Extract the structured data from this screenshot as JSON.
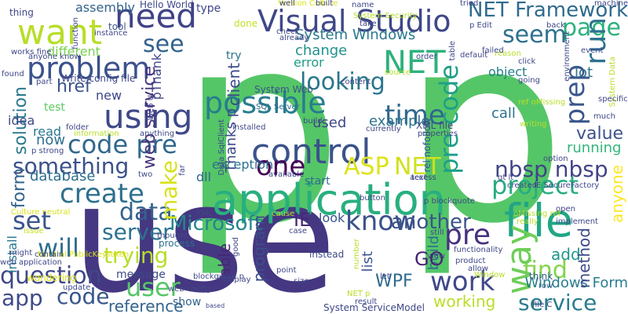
{
  "words": [
    {
      "text": "p",
      "color": "#55c667",
      "vertical": false
    },
    {
      "text": "p",
      "color": "#55c667",
      "vertical": false
    },
    {
      "text": "use",
      "color": "#453781",
      "vertical": false
    },
    {
      "text": "application",
      "color": "#29af7f",
      "vertical": false
    },
    {
      "text": "control",
      "color": "#3b528b",
      "vertical": false
    },
    {
      "text": "file",
      "color": "#21a685",
      "vertical": false
    },
    {
      "text": "need",
      "color": "#404387",
      "vertical": false
    },
    {
      "text": "Visual Studio",
      "color": "#3f4788",
      "vertical": false
    },
    {
      "text": "want",
      "color": "#b8de29",
      "vertical": false
    },
    {
      "text": "NET",
      "color": "#2db27d",
      "vertical": false
    },
    {
      "text": "problem",
      "color": "#3b528b",
      "vertical": false
    },
    {
      "text": "using",
      "color": "#3e4989",
      "vertical": false
    },
    {
      "text": "possible",
      "color": "#287d8e",
      "vertical": false
    },
    {
      "text": "code pre",
      "color": "#31688e",
      "vertical": false
    },
    {
      "text": "create",
      "color": "#2d708e",
      "vertical": false
    },
    {
      "text": "something",
      "color": "#3b528b",
      "vertical": false
    },
    {
      "text": "one",
      "color": "#440154",
      "vertical": false
    },
    {
      "text": "ASP",
      "color": "#dde318",
      "vertical": false
    },
    {
      "text": "NET",
      "color": "#d0e11c",
      "vertical": false
    },
    {
      "text": "project",
      "color": "#26ad81",
      "vertical": false
    },
    {
      "text": "know",
      "color": "#3b528b",
      "vertical": false
    },
    {
      "text": "data",
      "color": "#33638d",
      "vertical": false
    },
    {
      "text": "set",
      "color": "#3a548c",
      "vertical": false
    },
    {
      "text": "server",
      "color": "#2c728e",
      "vertical": false
    },
    {
      "text": "trying",
      "color": "#b5de2b",
      "vertical": false
    },
    {
      "text": "will",
      "color": "#2e6e8e",
      "vertical": false
    },
    {
      "text": "question",
      "color": "#3f4788",
      "vertical": false
    },
    {
      "text": "user",
      "color": "#56c667",
      "vertical": false
    },
    {
      "text": "app",
      "color": "#3e4a89",
      "vertical": false
    },
    {
      "text": "code",
      "color": "#39568c",
      "vertical": false
    },
    {
      "text": "work",
      "color": "#3f4889",
      "vertical": false
    },
    {
      "text": "find",
      "color": "#84d44b",
      "vertical": false
    },
    {
      "text": "service",
      "color": "#287c8e",
      "vertical": false
    },
    {
      "text": "time",
      "color": "#31678e",
      "vertical": false
    },
    {
      "text": "looking",
      "color": "#2a768e",
      "vertical": false
    },
    {
      "text": "page",
      "color": "#2db27d",
      "vertical": false
    },
    {
      "text": "seem",
      "color": "#2d718e",
      "vertical": false
    },
    {
      "text": "see",
      "color": "#33628d",
      "vertical": false
    },
    {
      "text": "NET Framework",
      "color": "#2f6b8e",
      "vertical": false
    },
    {
      "text": "nbsp nbsp",
      "color": "#414487",
      "vertical": false
    },
    {
      "text": "Microsoft",
      "color": "#25858e",
      "vertical": false
    },
    {
      "text": "IE",
      "color": "#482878",
      "vertical": false
    },
    {
      "text": "another",
      "color": "#3b528b",
      "vertical": false
    },
    {
      "text": "pre",
      "color": "#46327e",
      "vertical": false
    },
    {
      "text": "make",
      "color": "#d8e219",
      "vertical": true
    },
    {
      "text": "pre code",
      "color": "#1f9f88",
      "vertical": true
    },
    {
      "text": "way",
      "color": "#6ece58",
      "vertical": true
    },
    {
      "text": "prep",
      "color": "#39568c",
      "vertical": true
    },
    {
      "text": "run",
      "color": "#2c728e",
      "vertical": true
    },
    {
      "text": "solution",
      "color": "#2a788e",
      "vertical": true
    },
    {
      "text": "form",
      "color": "#33638d",
      "vertical": true
    },
    {
      "text": "web service",
      "color": "#46327e",
      "vertical": true
    },
    {
      "text": "client",
      "color": "#3e4a89",
      "vertical": true
    },
    {
      "text": "href",
      "color": "#3b528b",
      "vertical": false
    },
    {
      "text": "System Windows",
      "color": "#2a788e",
      "vertical": false
    },
    {
      "text": "change",
      "color": "#20928c",
      "vertical": false
    },
    {
      "text": "error",
      "color": "#1f9e89",
      "vertical": false
    },
    {
      "text": "object",
      "color": "#277f8e",
      "vertical": false
    },
    {
      "text": "call",
      "color": "#2c718e",
      "vertical": false
    },
    {
      "text": "value",
      "color": "#3b528b",
      "vertical": false
    },
    {
      "text": "running",
      "color": "#32b67a",
      "vertical": false
    },
    {
      "text": "lot",
      "color": "#2c728e",
      "vertical": false
    },
    {
      "text": "example",
      "color": "#2c738e",
      "vertical": false
    },
    {
      "text": "used",
      "color": "#3f4788",
      "vertical": false
    },
    {
      "text": "database",
      "color": "#2e6f8e",
      "vertical": false
    },
    {
      "text": "exception",
      "color": "#2c728e",
      "vertical": false
    },
    {
      "text": "dll",
      "color": "#31668e",
      "vertical": false
    },
    {
      "text": "start",
      "color": "#2f6c8e",
      "vertical": false
    },
    {
      "text": "look",
      "color": "#3b528b",
      "vertical": false
    },
    {
      "text": "add",
      "color": "#1f988b",
      "vertical": false
    },
    {
      "text": "Windows Form",
      "color": "#277e8e",
      "vertical": false
    },
    {
      "text": "working",
      "color": "#bade28",
      "vertical": false
    },
    {
      "text": "reference",
      "color": "#33638d",
      "vertical": false
    },
    {
      "text": "message",
      "color": "#3e4a89",
      "vertical": false
    },
    {
      "text": "program",
      "color": "#3d4e8a",
      "vertical": true
    },
    {
      "text": "able",
      "color": "#482677",
      "vertical": true
    },
    {
      "text": "list",
      "color": "#3a548c",
      "vertical": true
    },
    {
      "text": "build",
      "color": "#2e6e8e",
      "vertical": true
    },
    {
      "text": "method",
      "color": "#3e4989",
      "vertical": true
    },
    {
      "text": "anyone",
      "color": "#fde725",
      "vertical": true
    },
    {
      "text": "GO",
      "color": "#482475",
      "vertical": false
    },
    {
      "text": "WPF",
      "color": "#2f6b8e",
      "vertical": false
    },
    {
      "text": "idea",
      "color": "#3f4788",
      "vertical": false
    },
    {
      "text": "read",
      "color": "#2a788e",
      "vertical": false
    },
    {
      "text": "now",
      "color": "#2d718e",
      "vertical": false
    },
    {
      "text": "test",
      "color": "#5ec962",
      "vertical": false
    },
    {
      "text": "tool",
      "color": "#3b528b",
      "vertical": false
    },
    {
      "text": "try",
      "color": "#2d708e",
      "vertical": false
    },
    {
      "text": "done",
      "color": "#c2df23",
      "vertical": false
    },
    {
      "text": "type",
      "color": "#3f4788",
      "vertical": false
    },
    {
      "text": "thing",
      "color": "#3f4788",
      "vertical": false
    },
    {
      "text": "assembly",
      "color": "#33638d",
      "vertical": false
    },
    {
      "text": "different",
      "color": "#7ad151",
      "vertical": false
    },
    {
      "text": "Hello World",
      "color": "#3f4788",
      "vertical": false
    },
    {
      "text": "Write config file",
      "color": "#3f4788",
      "vertical": false
    },
    {
      "text": "System Web",
      "color": "#3b528b",
      "vertical": false
    },
    {
      "text": "SQL Server",
      "color": "#2f6c8e",
      "vertical": false
    },
    {
      "text": "install",
      "color": "#2a788e",
      "vertical": true
    },
    {
      "text": "Culture neutral",
      "color": "#d8e219",
      "vertical": false
    },
    {
      "text": "System ServiceModel",
      "color": "#3f4788",
      "vertical": false
    },
    {
      "text": "process",
      "color": "#2d708e",
      "vertical": false
    },
    {
      "text": "show",
      "color": "#33638d",
      "vertical": false
    },
    {
      "text": "think",
      "color": "#33638d",
      "vertical": false
    },
    {
      "text": "row",
      "color": "#33638d",
      "vertical": false
    },
    {
      "text": "instead",
      "color": "#3f4788",
      "vertical": false
    },
    {
      "text": "Thanks p",
      "color": "#3e4989",
      "vertical": true
    },
    {
      "text": "pThank",
      "color": "#3f4788",
      "vertical": true
    },
    {
      "text": "new",
      "color": "#3f4788",
      "vertical": false
    },
    {
      "text": "rel nofollow",
      "color": "#39568c",
      "vertical": true
    },
    {
      "text": "gt lt",
      "color": "#3f4788",
      "vertical": false
    },
    {
      "text": "web application",
      "color": "#3f4788",
      "vertical": false
    },
    {
      "text": "wondering",
      "color": "#dde318",
      "vertical": false
    },
    {
      "text": "issue",
      "color": "#cae11f",
      "vertical": false
    },
    {
      "text": "Version Culture",
      "color": "#dde318",
      "vertical": false
    },
    {
      "text": "works fine",
      "color": "#3f4788",
      "vertical": false
    },
    {
      "text": "anyone know",
      "color": "#3f4788",
      "vertical": false
    },
    {
      "text": "machine",
      "color": "#3f4788",
      "vertical": false
    },
    {
      "text": "IE SecureFactory",
      "color": "#3f4788",
      "vertical": false
    },
    {
      "text": "XML file",
      "color": "#3f4788",
      "vertical": false
    },
    {
      "text": "good",
      "color": "#3f4788",
      "vertical": true
    },
    {
      "text": "far",
      "color": "#3f4788",
      "vertical": true
    },
    {
      "text": "build",
      "color": "#3f4788",
      "vertical": false
    },
    {
      "text": "check",
      "color": "#3f4788",
      "vertical": false
    },
    {
      "text": "already",
      "color": "#3f4788",
      "vertical": false
    },
    {
      "text": "source",
      "color": "#b8de29",
      "vertical": false
    },
    {
      "text": "content",
      "color": "#3f4788",
      "vertical": false
    },
    {
      "text": "reason",
      "color": "#b8de29",
      "vertical": false
    },
    {
      "text": "currently",
      "color": "#3f4788",
      "vertical": false
    },
    {
      "text": "properties",
      "color": "#3f4788",
      "vertical": false
    },
    {
      "text": "access",
      "color": "#3f4788",
      "vertical": false
    },
    {
      "text": "button",
      "color": "#3f4788",
      "vertical": false
    },
    {
      "text": "p blockquote",
      "color": "#3f4788",
      "vertical": false
    },
    {
      "text": "open",
      "color": "#3f4788",
      "vertical": false
    },
    {
      "text": "implement",
      "color": "#3f4788",
      "vertical": false
    },
    {
      "text": "view",
      "color": "#3f4788",
      "vertical": false
    },
    {
      "text": "functionality",
      "color": "#3f4788",
      "vertical": false
    },
    {
      "text": "product",
      "color": "#3f4788",
      "vertical": false
    },
    {
      "text": "allow",
      "color": "#3f4788",
      "vertical": false
    },
    {
      "text": "blockquote p",
      "color": "#3f4788",
      "vertical": false
    },
    {
      "text": "point",
      "color": "#3f4788",
      "vertical": false
    },
    {
      "text": "size",
      "color": "#3f4788",
      "vertical": false
    },
    {
      "text": "let",
      "color": "#3f4788",
      "vertical": false
    },
    {
      "text": "result",
      "color": "#3f4788",
      "vertical": false
    },
    {
      "text": "file C",
      "color": "#3f4788",
      "vertical": false
    },
    {
      "text": "display",
      "color": "#3f4788",
      "vertical": false
    },
    {
      "text": "thought",
      "color": "#3f4788",
      "vertical": false
    },
    {
      "text": "web config",
      "color": "#3f4788",
      "vertical": false
    },
    {
      "text": "based",
      "color": "#3f4788",
      "vertical": false
    },
    {
      "text": "Neutral PublicKeyToken",
      "color": "#dde318",
      "vertical": false
    },
    {
      "text": "contain",
      "color": "#3f4788",
      "vertical": false
    },
    {
      "text": "might",
      "color": "#3f4788",
      "vertical": false
    },
    {
      "text": "update",
      "color": "#3f4788",
      "vertical": false
    },
    {
      "text": "p strong",
      "color": "#3f4788",
      "vertical": false
    },
    {
      "text": "information",
      "color": "#b8de29",
      "vertical": false
    },
    {
      "text": "anything",
      "color": "#3f4788",
      "vertical": false
    },
    {
      "text": "folder",
      "color": "#3f4788",
      "vertical": false
    },
    {
      "text": "part",
      "color": "#3f4788",
      "vertical": false
    },
    {
      "text": "found",
      "color": "#3f4788",
      "vertical": false
    },
    {
      "text": "function",
      "color": "#3f4788",
      "vertical": true
    },
    {
      "text": "instance",
      "color": "#3f4788",
      "vertical": false
    },
    {
      "text": "well",
      "color": "#3f4788",
      "vertical": false
    },
    {
      "text": "built",
      "color": "#3f4788",
      "vertical": false
    },
    {
      "text": "name",
      "color": "#3f4788",
      "vertical": false
    },
    {
      "text": "System Security",
      "color": "#b8de29",
      "vertical": false
    },
    {
      "text": "take",
      "color": "#3f4788",
      "vertical": false
    },
    {
      "text": "tried",
      "color": "#3f4788",
      "vertical": false
    },
    {
      "text": "table",
      "color": "#3f4788",
      "vertical": true
    },
    {
      "text": "p Edit",
      "color": "#3f4788",
      "vertical": false
    },
    {
      "text": "back",
      "color": "#3f4788",
      "vertical": false
    },
    {
      "text": "environment",
      "color": "#3f4788",
      "vertical": true
    },
    {
      "text": "event",
      "color": "#3f4788",
      "vertical": false
    },
    {
      "text": "System Data",
      "color": "#b8de29",
      "vertical": true
    },
    {
      "text": "failed",
      "color": "#3f4788",
      "vertical": false
    },
    {
      "text": "default",
      "color": "#3f4788",
      "vertical": false
    },
    {
      "text": "order",
      "color": "#3f4788",
      "vertical": false
    },
    {
      "text": "click",
      "color": "#3f4788",
      "vertical": false
    },
    {
      "text": "going",
      "color": "#3f4788",
      "vertical": false
    },
    {
      "text": "ref oMissing",
      "color": "#b8de29",
      "vertical": false
    },
    {
      "text": "writing",
      "color": "#b8de29",
      "vertical": false
    },
    {
      "text": "specific",
      "color": "#3f4788",
      "vertical": false
    },
    {
      "text": "much",
      "color": "#3f4788",
      "vertical": false
    },
    {
      "text": "option",
      "color": "#3f4788",
      "vertical": false
    },
    {
      "text": "created",
      "color": "#3f4788",
      "vertical": false
    },
    {
      "text": "oMissing ref",
      "color": "#b8de29",
      "vertical": false
    },
    {
      "text": "really",
      "color": "#b8de29",
      "vertical": false
    },
    {
      "text": "Window",
      "color": "#b8de29",
      "vertical": false
    },
    {
      "text": "Web UI",
      "color": "#3f4788",
      "vertical": true
    },
    {
      "text": "Data SqlClient",
      "color": "#3f4788",
      "vertical": true
    },
    {
      "text": "installed",
      "color": "#3f4788",
      "vertical": false
    },
    {
      "text": "text",
      "color": "#3f4788",
      "vertical": false
    },
    {
      "text": "available",
      "color": "#3f4788",
      "vertical": false
    },
    {
      "text": "two",
      "color": "#3f4788",
      "vertical": false
    },
    {
      "text": "XML",
      "color": "#3f4788",
      "vertical": false
    },
    {
      "text": "case",
      "color": "#3f4788",
      "vertical": false
    },
    {
      "text": "still",
      "color": "#3f4788",
      "vertical": false
    },
    {
      "text": "cause",
      "color": "#b8de29",
      "vertical": false
    },
    {
      "text": "number",
      "color": "#b8de29",
      "vertical": true
    },
    {
      "text": "NET p",
      "color": "#b8de29",
      "vertical": false
    }
  ]
}
